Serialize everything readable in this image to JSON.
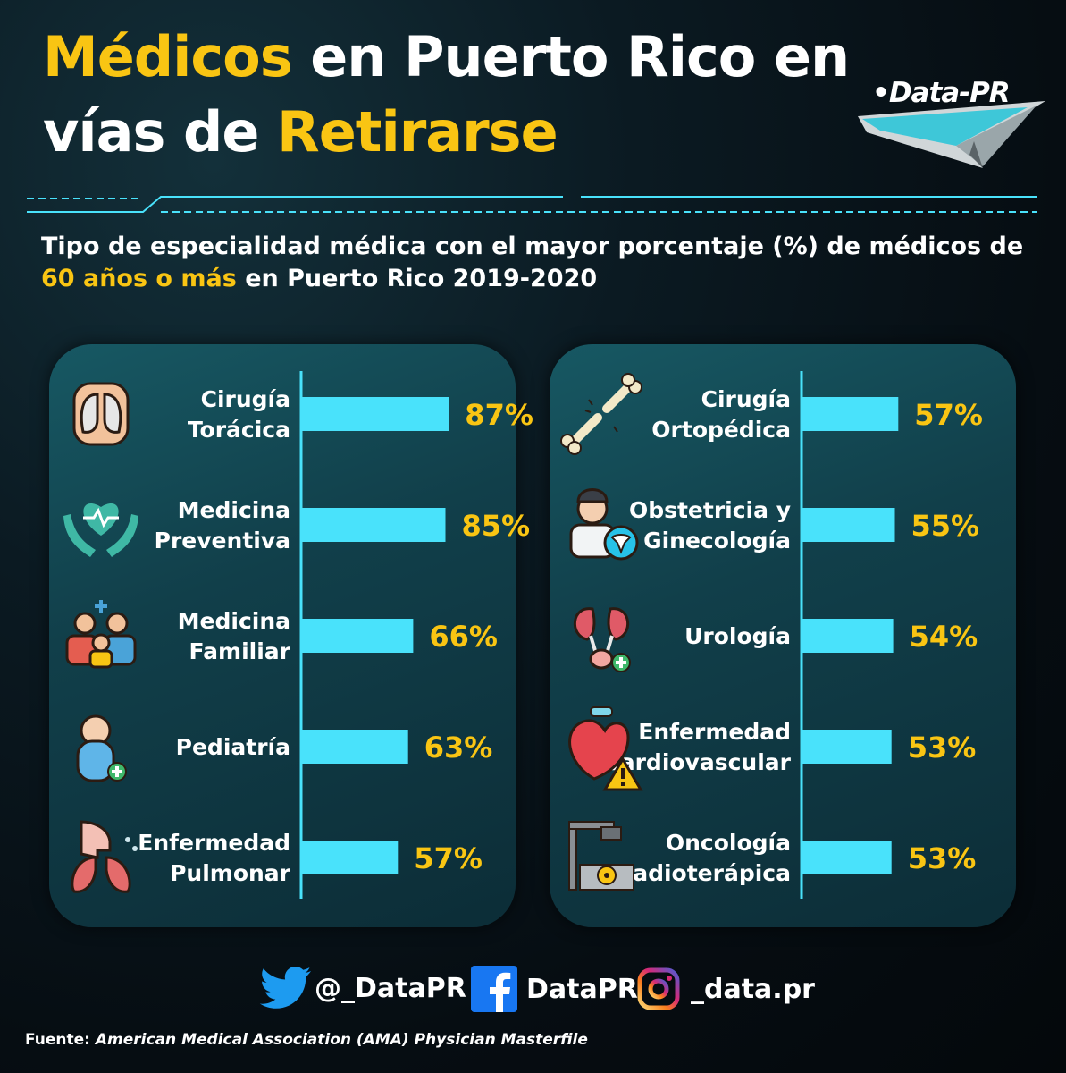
{
  "header": {
    "title_line1_highlight": "Médicos",
    "title_line1_rest": " en Puerto Rico en",
    "title_line2_start": "vías de ",
    "title_line2_highlight": "Retirarse",
    "logo_text": "•Data-PR"
  },
  "subtitle": {
    "line1": "Tipo de especialidad médica con el mayor porcentaje (%) de médicos de",
    "line2_highlight": "60 años o más",
    "line2_rest": " en Puerto Rico 2019-2020"
  },
  "colors": {
    "bar": "#49e2fb",
    "value": "#f9c513",
    "axis": "#49e2fb",
    "panel": "#134a55"
  },
  "chart_data": [
    {
      "type": "bar",
      "orientation": "horizontal",
      "categories": [
        [
          "Cirugía",
          "Torácica"
        ],
        [
          "Medicina",
          "Preventiva"
        ],
        [
          "Medicina",
          "Familiar"
        ],
        [
          "Pediatría"
        ],
        [
          "Enfermedad",
          "Pulmonar"
        ]
      ],
      "values": [
        87,
        85,
        66,
        63,
        57
      ],
      "value_labels": [
        "87%",
        "85%",
        "66%",
        "63%",
        "57%"
      ],
      "icons": [
        "lungs-torso-icon",
        "heart-hands-icon",
        "family-icon",
        "baby-icon",
        "pulmonary-icon"
      ],
      "xlim": [
        0,
        100
      ]
    },
    {
      "type": "bar",
      "orientation": "horizontal",
      "categories": [
        [
          "Cirugía",
          "Ortopédica"
        ],
        [
          "Obstetricia y",
          "Ginecología"
        ],
        [
          "Urología"
        ],
        [
          "Enfermedad",
          "Cardiovascular"
        ],
        [
          "Oncología",
          "Radioterápica"
        ]
      ],
      "values": [
        57,
        55,
        54,
        53,
        53
      ],
      "value_labels": [
        "57%",
        "55%",
        "54%",
        "53%",
        "53%"
      ],
      "icons": [
        "broken-bone-icon",
        "doctor-uterus-icon",
        "kidneys-icon",
        "heart-warning-icon",
        "radiotherapy-machine-icon"
      ],
      "xlim": [
        0,
        100
      ]
    }
  ],
  "footer": {
    "twitter": "@_DataPR",
    "facebook": "DataPR",
    "instagram": "_data.pr",
    "source_label": "Fuente:",
    "source_text": "American Medical Association (AMA) Physician Masterfile"
  }
}
